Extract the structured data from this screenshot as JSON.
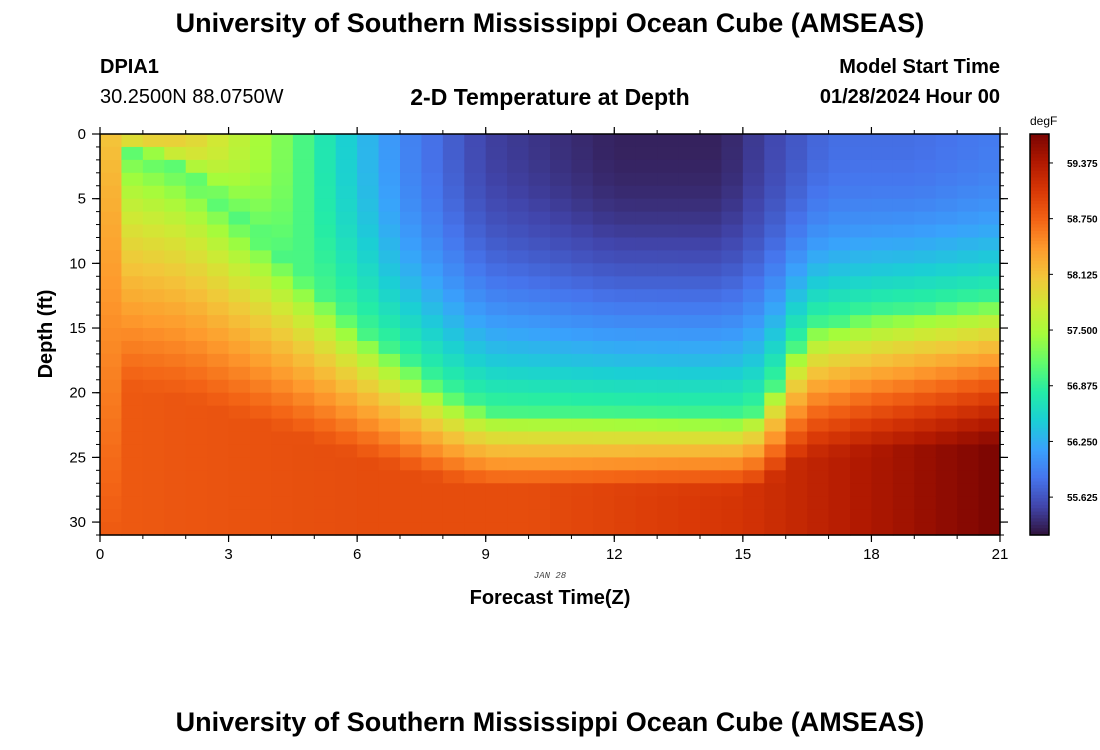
{
  "page": {
    "title_top": "University of Southern Mississippi Ocean Cube (AMSEAS)",
    "title_bottom": "University of Southern Mississippi Ocean Cube (AMSEAS)",
    "station": "DPIA1",
    "latlon": "30.2500N  88.0750W",
    "subtitle": "2-D Temperature at Depth",
    "start_label": "Model Start Time",
    "start_time": "01/28/2024 Hour 00"
  },
  "chart_data": {
    "type": "heatmap",
    "title": "2-D Temperature at Depth",
    "xlabel": "Forecast Time(Z)",
    "ylabel": "Depth (ft)",
    "date_label": "JAN 28",
    "x_ticks": [
      0,
      3,
      6,
      9,
      12,
      15,
      18,
      21
    ],
    "y_ticks": [
      0,
      5,
      10,
      15,
      20,
      25,
      30
    ],
    "xlim": [
      0,
      21
    ],
    "ylim": [
      0,
      31
    ],
    "colorbar": {
      "unit": "degF",
      "min": 55.2,
      "max": 59.7,
      "ticks": [
        "59.375",
        "58.750",
        "58.125",
        "57.500",
        "56.875",
        "56.250",
        "55.625"
      ],
      "colors": [
        "#30123b",
        "#4145ab",
        "#4675ed",
        "#39a2fc",
        "#1bcfd4",
        "#24eca6",
        "#61fc6c",
        "#a4fc3b",
        "#d1e834",
        "#f3c63a",
        "#fe9b2d",
        "#f36315",
        "#d93806",
        "#b11901",
        "#7a0402"
      ]
    },
    "grid_resolution": {
      "columns": 42,
      "rows": 31
    },
    "profiles": {
      "surface_temp_at_hours": [
        [
          0,
          58.1
        ],
        [
          2,
          58.0
        ],
        [
          4,
          57.4
        ],
        [
          5.5,
          56.6
        ],
        [
          7,
          56.0
        ],
        [
          9,
          55.5
        ],
        [
          12,
          55.3
        ],
        [
          14.5,
          55.3
        ],
        [
          15.5,
          55.5
        ],
        [
          17,
          55.8
        ],
        [
          19,
          55.8
        ],
        [
          21,
          55.9
        ]
      ],
      "cold_layer_bottom_depth_ft_at_hours": [
        [
          0,
          0
        ],
        [
          2,
          3
        ],
        [
          4,
          9
        ],
        [
          6,
          15
        ],
        [
          8,
          20
        ],
        [
          9,
          21.5
        ],
        [
          15,
          22
        ],
        [
          15.5,
          21
        ],
        [
          16.5,
          15
        ],
        [
          18,
          14
        ],
        [
          21,
          13
        ]
      ],
      "bottom_temp_degF_at_hours": [
        [
          0,
          58.8
        ],
        [
          6,
          58.9
        ],
        [
          10,
          58.9
        ],
        [
          15,
          59.1
        ],
        [
          17,
          59.3
        ],
        [
          19,
          59.5
        ],
        [
          21,
          59.7
        ]
      ]
    }
  }
}
